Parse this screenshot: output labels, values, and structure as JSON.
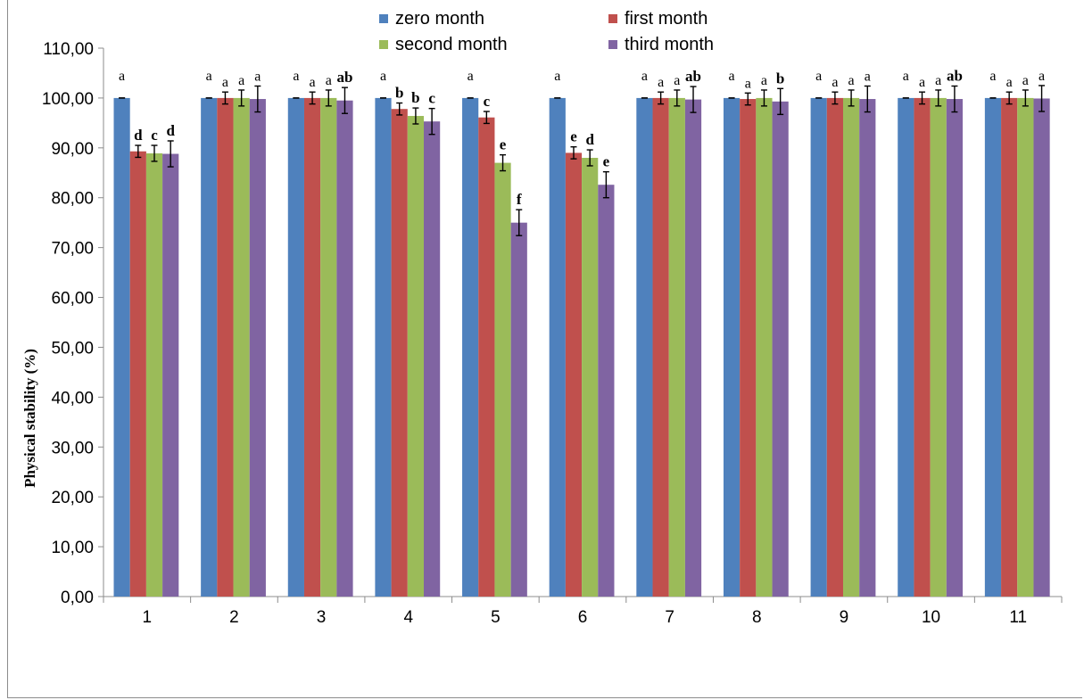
{
  "chart_data": {
    "type": "bar",
    "title": "",
    "xlabel": "",
    "ylabel": "Physical stability (%)",
    "ylim": [
      0,
      110
    ],
    "y_ticks": [
      "0,00",
      "10,00",
      "20,00",
      "30,00",
      "40,00",
      "50,00",
      "60,00",
      "70,00",
      "80,00",
      "90,00",
      "100,00",
      "110,00"
    ],
    "categories": [
      "1",
      "2",
      "3",
      "4",
      "5",
      "6",
      "7",
      "8",
      "9",
      "10",
      "11"
    ],
    "legend_position": "top",
    "grid": false,
    "series": [
      {
        "name": "zero month",
        "color": "#4f81bd",
        "values": [
          100,
          100,
          100,
          100,
          100,
          100,
          100,
          100,
          100,
          100,
          100
        ],
        "errors": [
          0,
          0,
          0,
          0,
          0,
          0,
          0,
          0,
          0,
          0,
          0
        ],
        "labels": [
          "a",
          "a",
          "a",
          "a",
          "a",
          "a",
          "a",
          "a",
          "a",
          "a",
          "a"
        ]
      },
      {
        "name": "first month",
        "color": "#c0504d",
        "values": [
          89.3,
          100,
          100,
          97.8,
          96.1,
          89.0,
          100,
          99.8,
          100,
          100,
          100
        ],
        "errors": [
          1.2,
          1.2,
          1.2,
          1.2,
          1.2,
          1.2,
          1.2,
          1.2,
          1.2,
          1.2,
          1.2
        ],
        "labels": [
          "d",
          "a",
          "a",
          "b",
          "c",
          "e",
          "a",
          "a",
          "a",
          "a",
          "a"
        ]
      },
      {
        "name": "second month",
        "color": "#9bbb59",
        "values": [
          88.9,
          100,
          100,
          96.4,
          87.0,
          88.0,
          100,
          100,
          100,
          100,
          100
        ],
        "errors": [
          1.6,
          1.6,
          1.6,
          1.6,
          1.6,
          1.6,
          1.6,
          1.6,
          1.6,
          1.6,
          1.6
        ],
        "labels": [
          "c",
          "a",
          "a",
          "b",
          "e",
          "d",
          "a",
          "a",
          "a",
          "a",
          "a"
        ]
      },
      {
        "name": "third month",
        "color": "#8064a2",
        "values": [
          88.8,
          99.8,
          99.5,
          95.3,
          75.0,
          82.6,
          99.7,
          99.3,
          99.8,
          99.8,
          99.9
        ],
        "errors": [
          2.6,
          2.6,
          2.6,
          2.6,
          2.6,
          2.6,
          2.6,
          2.6,
          2.6,
          2.6,
          2.6
        ],
        "labels": [
          "d",
          "a",
          "ab",
          "c",
          "f",
          "e",
          "ab",
          "b",
          "a",
          "ab",
          "a"
        ]
      }
    ]
  }
}
